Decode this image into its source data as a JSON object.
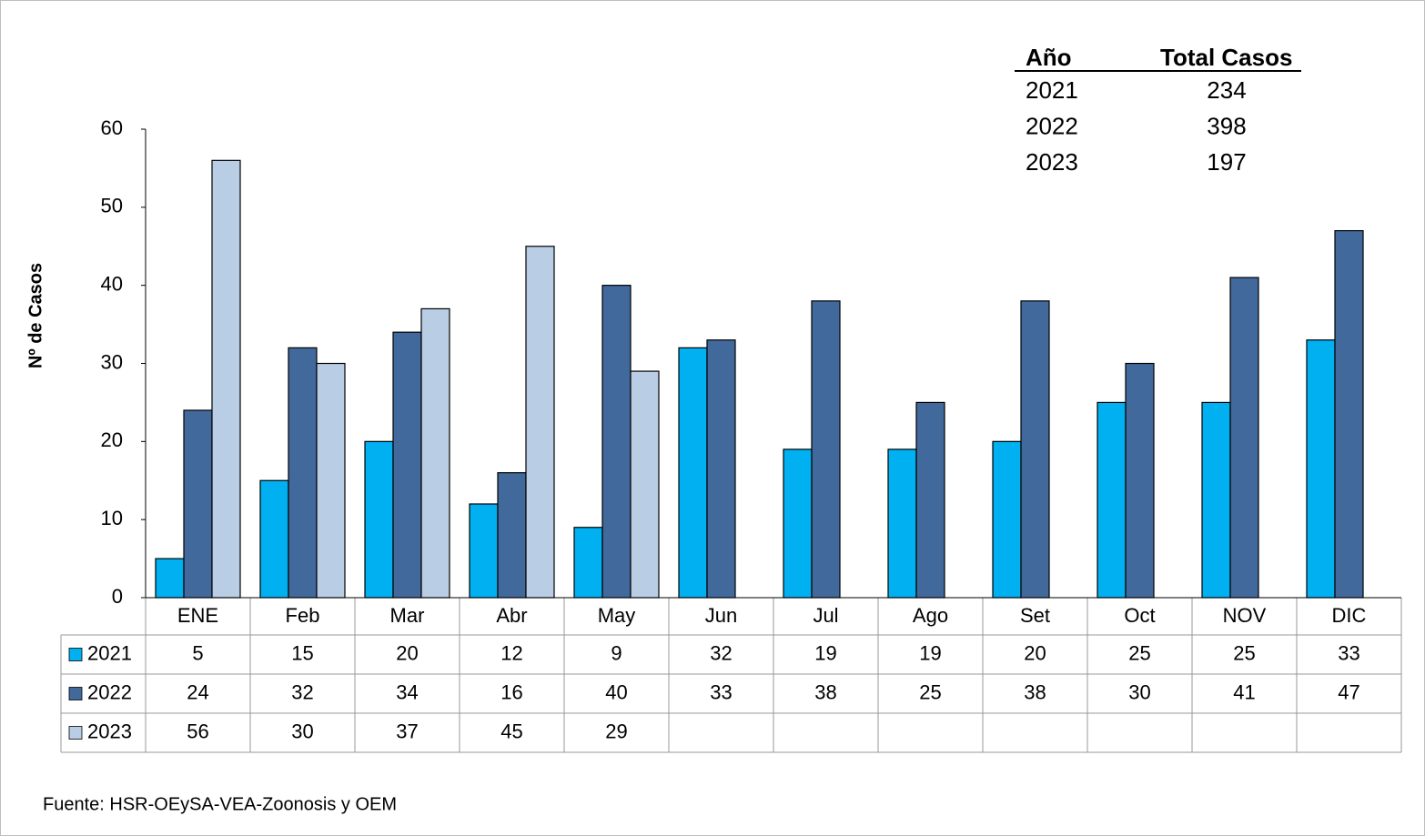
{
  "chart_data": {
    "type": "bar",
    "y_label": "Nº de Casos",
    "categories": [
      "ENE",
      "Feb",
      "Mar",
      "Abr",
      "May",
      "Jun",
      "Jul",
      "Ago",
      "Set",
      "Oct",
      "NOV",
      "DIC"
    ],
    "series": [
      {
        "name": "2021",
        "color": "#00b0f0",
        "values": [
          5,
          15,
          20,
          12,
          9,
          32,
          19,
          19,
          20,
          25,
          25,
          33
        ]
      },
      {
        "name": "2022",
        "color": "#41699c",
        "values": [
          24,
          32,
          34,
          16,
          40,
          33,
          38,
          25,
          38,
          30,
          41,
          47
        ]
      },
      {
        "name": "2023",
        "color": "#b9cde5",
        "values": [
          56,
          30,
          37,
          45,
          29,
          null,
          null,
          null,
          null,
          null,
          null,
          null
        ]
      }
    ],
    "ylim": [
      0,
      60
    ],
    "yticks": [
      0,
      10,
      20,
      30,
      40,
      50,
      60
    ],
    "grid": false,
    "summary_table": {
      "columns": [
        "Año",
        "Total Casos"
      ],
      "rows": [
        [
          "2021",
          234
        ],
        [
          "2022",
          398
        ],
        [
          "2023",
          197
        ]
      ]
    },
    "source": "Fuente: HSR-OEySA-VEA-Zoonosis y OEM"
  }
}
